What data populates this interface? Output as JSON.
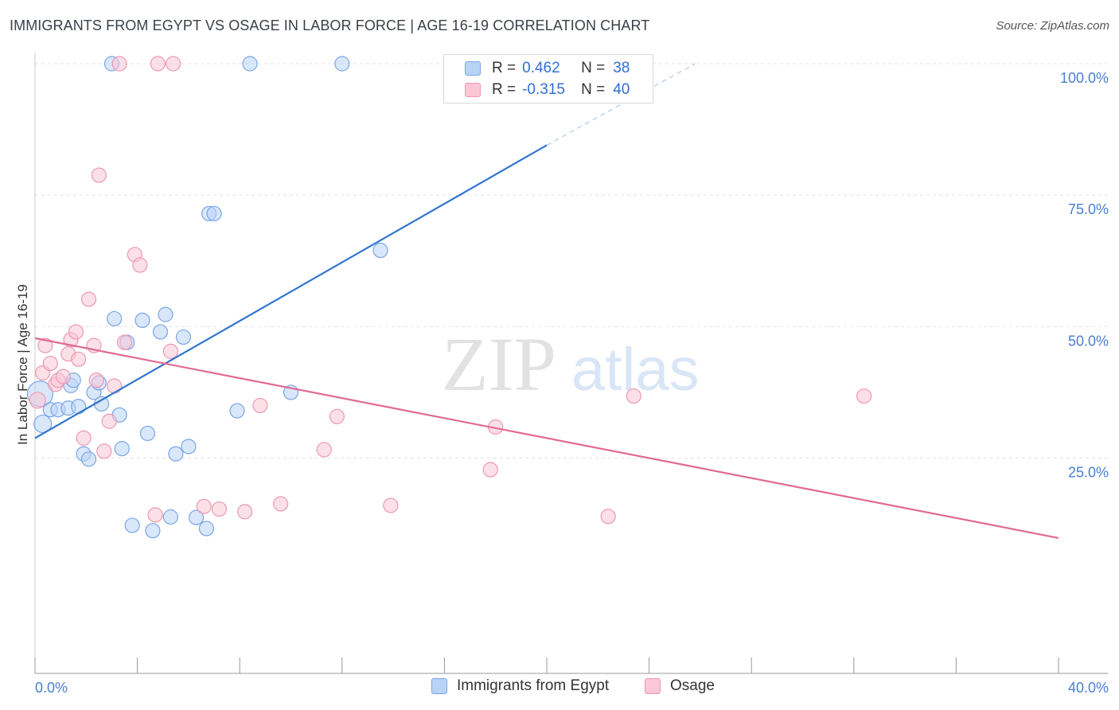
{
  "title": "IMMIGRANTS FROM EGYPT VS OSAGE IN LABOR FORCE | AGE 16-19 CORRELATION CHART",
  "source": "Source: ZipAtlas.com",
  "watermark": {
    "zip": "ZIP",
    "atlas": "atlas"
  },
  "legend": {
    "rows": [
      {
        "r_label": "R =",
        "r_value": "0.462",
        "n_label": "N =",
        "n_value": "38",
        "fill": "#b9d3f5",
        "stroke": "#7aa6e6"
      },
      {
        "r_label": "R =",
        "r_value": "-0.315",
        "n_label": "N =",
        "n_value": "40",
        "fill": "#f9c7d6",
        "stroke": "#ee97b2"
      }
    ]
  },
  "bottom_legend": [
    {
      "label": "Immigrants from Egypt",
      "fill": "#b9d3f5",
      "stroke": "#7aa6e6"
    },
    {
      "label": "Osage",
      "fill": "#f9c7d6",
      "stroke": "#ee97b2"
    }
  ],
  "chart_data": {
    "type": "scatter",
    "title": "IMMIGRANTS FROM EGYPT VS OSAGE IN LABOR FORCE | AGE 16-19 CORRELATION CHART",
    "xlabel": "",
    "ylabel": "In Labor Force | Age 16-19",
    "xlim": [
      0,
      40
    ],
    "ylim": [
      5,
      102
    ],
    "x_tick_labels": [
      {
        "value": 0,
        "label": "0.0%"
      },
      {
        "value": 40,
        "label": "40.0%"
      }
    ],
    "y_tick_labels": [
      {
        "value": 100,
        "label": "100.0%"
      },
      {
        "value": 75,
        "label": "75.0%"
      },
      {
        "value": 50,
        "label": "50.0%"
      },
      {
        "value": 25,
        "label": "25.0%"
      }
    ],
    "grid": true,
    "legend_position": "top-center",
    "series": [
      {
        "name": "Immigrants from Egypt",
        "color": "#7aa6e6",
        "fill": "#b9d3f5",
        "line_color": "#2f74d0",
        "trend": {
          "x0": 0.0,
          "y0": 28.8,
          "x1": 20.0,
          "y1": 84.5,
          "dash_to_x": 25.8,
          "dash_to_y": 100.0
        },
        "points": [
          [
            0.2,
            37.2,
            16
          ],
          [
            0.3,
            31.5,
            11
          ],
          [
            0.6,
            34.2,
            9
          ],
          [
            0.9,
            34.2,
            9
          ],
          [
            1.3,
            34.5,
            9
          ],
          [
            1.4,
            38.8,
            9
          ],
          [
            1.5,
            39.8,
            9
          ],
          [
            1.7,
            34.8,
            9
          ],
          [
            1.9,
            25.8,
            9
          ],
          [
            2.1,
            24.8,
            9
          ],
          [
            2.3,
            37.5,
            9
          ],
          [
            2.5,
            39.3,
            9
          ],
          [
            2.6,
            35.3,
            9
          ],
          [
            3.1,
            51.5,
            9
          ],
          [
            3.3,
            33.2,
            9
          ],
          [
            3.4,
            26.8,
            9
          ],
          [
            3.6,
            47.0,
            9
          ],
          [
            3.8,
            12.2,
            9
          ],
          [
            4.2,
            51.2,
            9
          ],
          [
            4.4,
            29.7,
            9
          ],
          [
            4.6,
            11.2,
            9
          ],
          [
            4.9,
            49.0,
            9
          ],
          [
            5.1,
            52.3,
            9
          ],
          [
            5.3,
            13.8,
            9
          ],
          [
            5.5,
            25.8,
            9
          ],
          [
            5.8,
            48.0,
            9
          ],
          [
            6.0,
            27.2,
            9
          ],
          [
            6.3,
            13.7,
            9
          ],
          [
            6.7,
            11.6,
            9
          ],
          [
            6.8,
            71.5,
            9
          ],
          [
            7.0,
            71.5,
            9
          ],
          [
            7.9,
            34.0,
            9
          ],
          [
            10.0,
            37.5,
            9
          ],
          [
            3.0,
            100.0,
            9
          ],
          [
            8.4,
            100.0,
            9
          ],
          [
            13.5,
            64.5,
            9
          ],
          [
            19.0,
            100.0,
            9
          ],
          [
            12.0,
            100.0,
            9
          ]
        ]
      },
      {
        "name": "Osage",
        "color": "#ee97b2",
        "fill": "#f9c7d6",
        "line_color": "#e06a93",
        "trend": {
          "x0": 0.0,
          "y0": 47.8,
          "x1": 40.0,
          "y1": 9.8
        },
        "points": [
          [
            0.1,
            36.0,
            10
          ],
          [
            0.3,
            41.2,
            9
          ],
          [
            0.4,
            46.4,
            9
          ],
          [
            0.6,
            43.0,
            9
          ],
          [
            0.8,
            39.0,
            9
          ],
          [
            0.9,
            39.8,
            9
          ],
          [
            1.1,
            40.5,
            9
          ],
          [
            1.3,
            44.8,
            9
          ],
          [
            1.4,
            47.5,
            9
          ],
          [
            1.6,
            49.0,
            9
          ],
          [
            1.7,
            43.8,
            9
          ],
          [
            1.9,
            28.8,
            9
          ],
          [
            2.1,
            55.2,
            9
          ],
          [
            2.3,
            46.4,
            9
          ],
          [
            2.4,
            39.8,
            9
          ],
          [
            2.5,
            78.8,
            9
          ],
          [
            2.7,
            26.3,
            9
          ],
          [
            2.9,
            32.0,
            9
          ],
          [
            3.1,
            38.7,
            9
          ],
          [
            3.5,
            47.0,
            9
          ],
          [
            3.9,
            63.7,
            9
          ],
          [
            4.1,
            61.7,
            9
          ],
          [
            4.7,
            14.2,
            9
          ],
          [
            5.3,
            45.3,
            9
          ],
          [
            6.6,
            15.8,
            9
          ],
          [
            7.2,
            15.3,
            9
          ],
          [
            8.2,
            14.8,
            9
          ],
          [
            8.8,
            35.0,
            9
          ],
          [
            9.6,
            16.3,
            9
          ],
          [
            11.3,
            26.6,
            9
          ],
          [
            11.8,
            32.9,
            9
          ],
          [
            13.9,
            16.0,
            9
          ],
          [
            17.8,
            22.8,
            9
          ],
          [
            18.0,
            30.9,
            9
          ],
          [
            22.4,
            13.9,
            9
          ],
          [
            23.4,
            36.8,
            9
          ],
          [
            32.4,
            36.8,
            9
          ],
          [
            3.3,
            100.0,
            9
          ],
          [
            4.8,
            100.0,
            9
          ],
          [
            5.4,
            100.0,
            9
          ]
        ]
      }
    ]
  }
}
